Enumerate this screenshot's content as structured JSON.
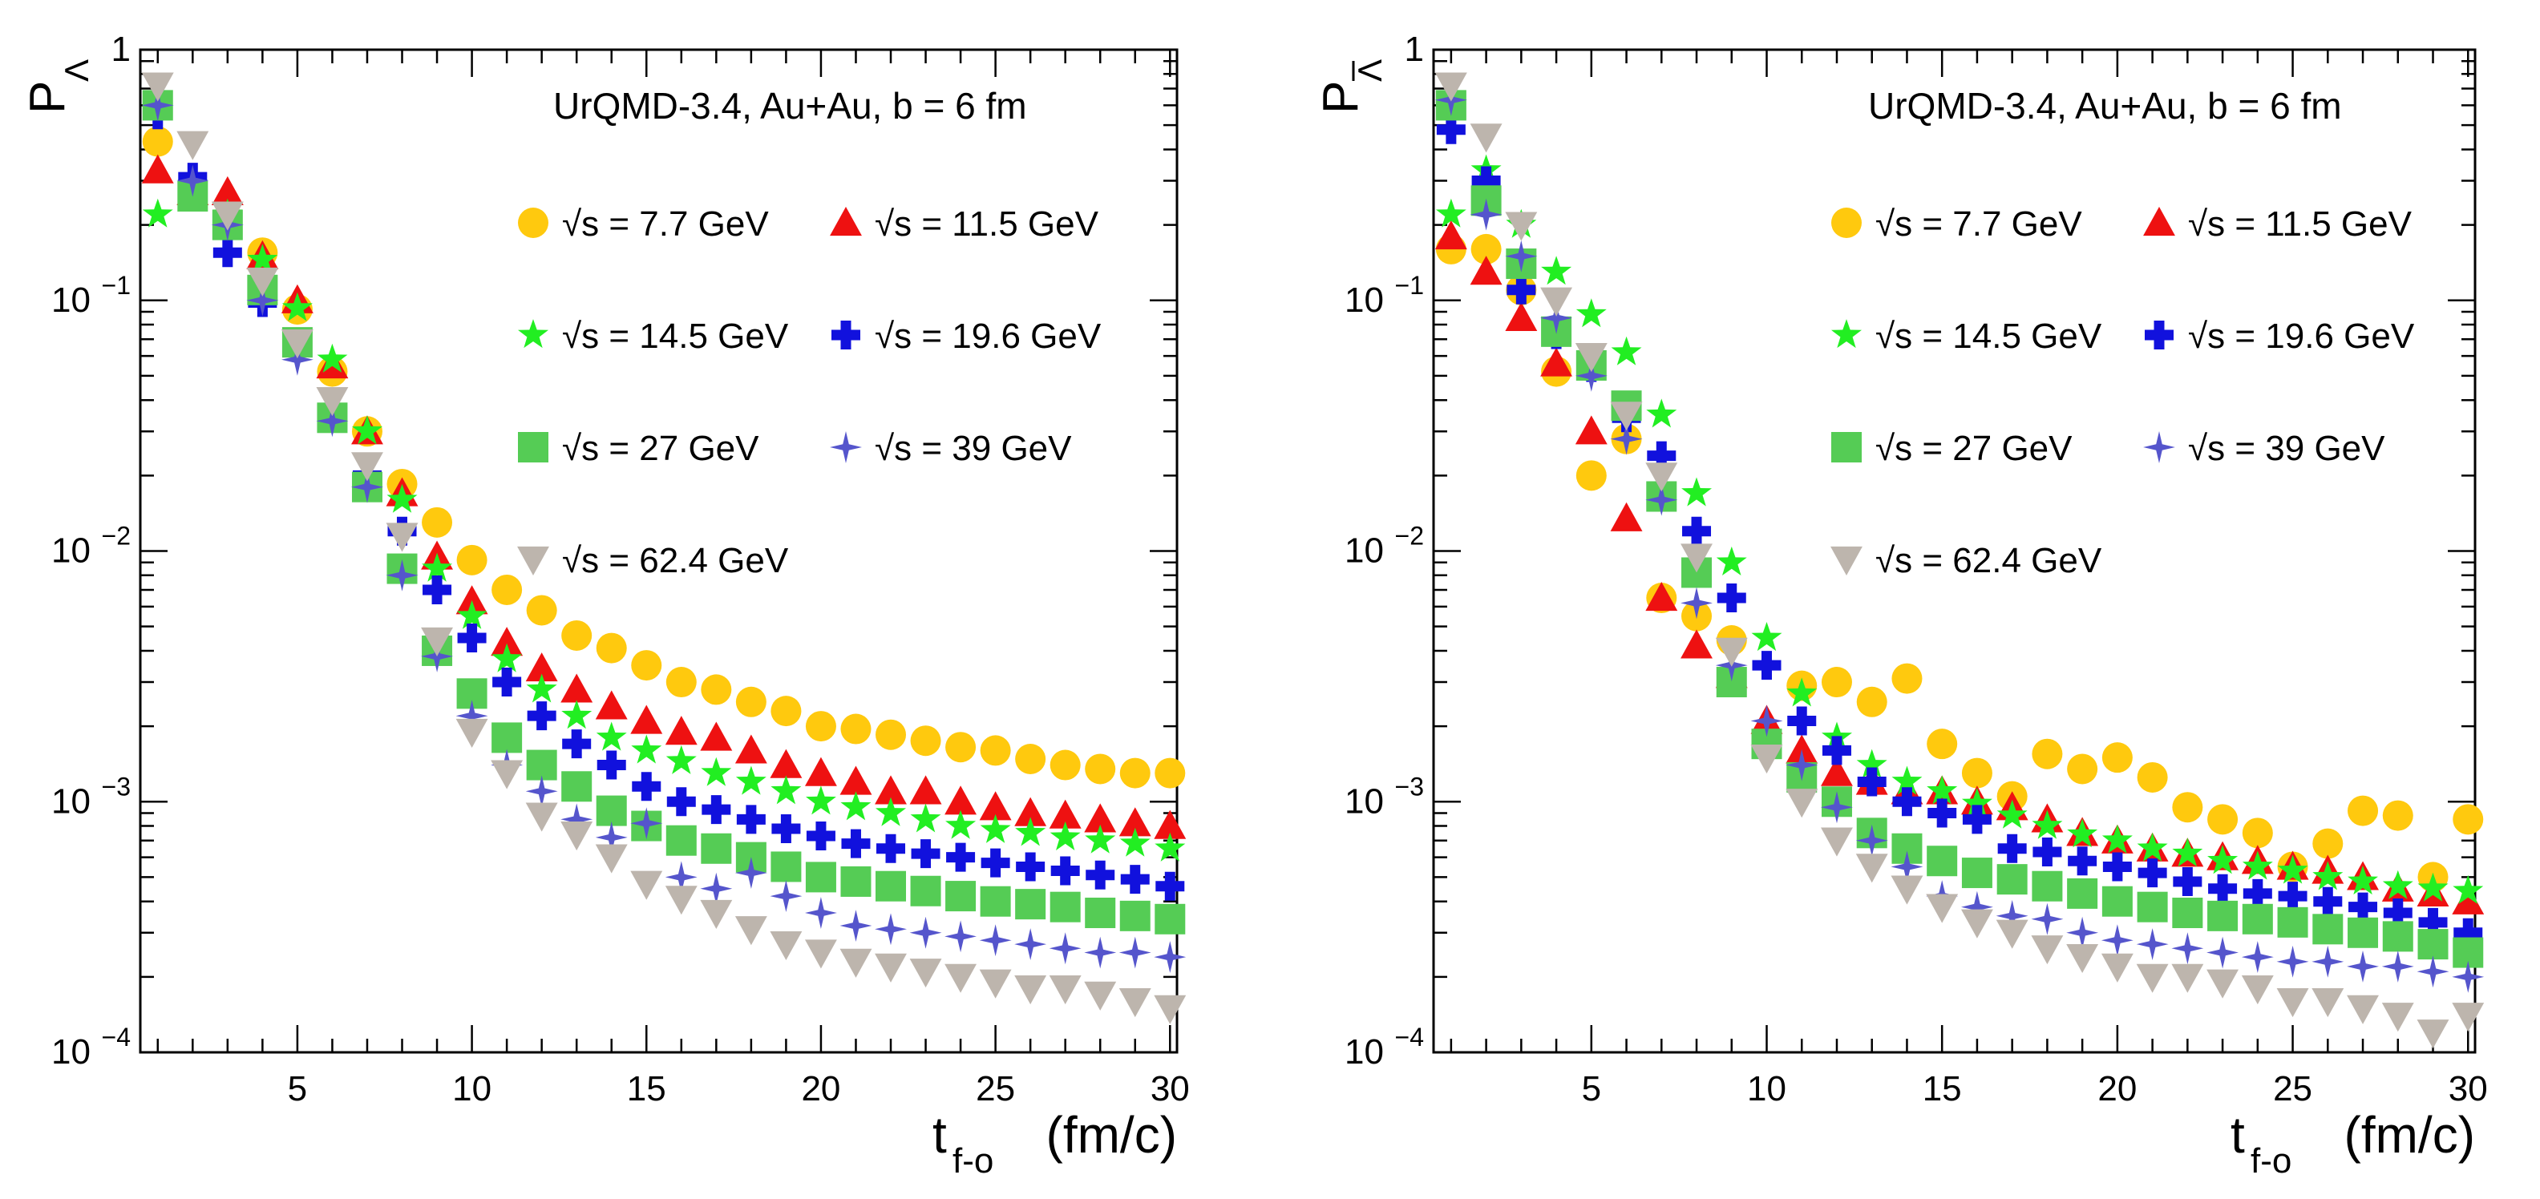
{
  "chart_data": [
    {
      "type": "scatter",
      "panel": "left",
      "yscale": "log",
      "xlim": [
        0.5,
        30.2
      ],
      "ylim": [
        0.0001,
        1
      ],
      "xticks": [
        5,
        10,
        15,
        20,
        25,
        30
      ],
      "ylabel_main": "P",
      "ylabel_sub": "Λ",
      "ylabel_bar": false,
      "xlabel_main": "t",
      "xlabel_sub": "f-o",
      "xlabel_unit": "(fm/c)",
      "annotation": "UrQMD-3.4, Au+Au, b = 6 fm",
      "ytick_labels": [
        {
          "value": 1,
          "base": "1",
          "exp": ""
        },
        {
          "value": 0.1,
          "base": "10",
          "exp": "−1"
        },
        {
          "value": 0.01,
          "base": "10",
          "exp": "−2"
        },
        {
          "value": 0.001,
          "base": "10",
          "exp": "−3"
        },
        {
          "value": 0.0001,
          "base": "10",
          "exp": "−4"
        }
      ],
      "series": [
        {
          "name": "√s = 7.7 GeV",
          "color": "#FFC90E",
          "marker": "circle",
          "x": [
            1,
            4,
            5,
            6,
            7,
            8,
            9,
            10,
            11,
            12,
            13,
            14,
            15,
            16,
            17,
            18,
            19,
            20,
            21,
            22,
            23,
            24,
            25,
            26,
            27,
            28,
            29,
            30
          ],
          "y": [
            0.43,
            0.155,
            0.092,
            0.052,
            0.03,
            0.0185,
            0.013,
            0.0092,
            0.007,
            0.0058,
            0.0046,
            0.0041,
            0.0035,
            0.003,
            0.0028,
            0.0025,
            0.0023,
            0.002,
            0.00195,
            0.00185,
            0.00175,
            0.00165,
            0.0016,
            0.00148,
            0.0014,
            0.00135,
            0.0013,
            0.0013
          ]
        },
        {
          "name": "√s = 11.5 GeV",
          "color": "#EE1111",
          "marker": "triangle-up",
          "x": [
            1,
            2,
            3,
            4,
            5,
            6,
            7,
            8,
            9,
            10,
            11,
            12,
            13,
            14,
            15,
            16,
            17,
            18,
            19,
            20,
            21,
            22,
            23,
            24,
            25,
            26,
            27,
            28,
            29,
            30
          ],
          "y": [
            0.33,
            0.27,
            0.27,
            0.15,
            0.1,
            0.055,
            0.03,
            0.017,
            0.0095,
            0.0063,
            0.0043,
            0.0034,
            0.0028,
            0.0024,
            0.0021,
            0.0019,
            0.0018,
            0.0016,
            0.0014,
            0.0013,
            0.0012,
            0.0011,
            0.0011,
            0.001,
            0.00095,
            0.0009,
            0.00088,
            0.00085,
            0.00082,
            0.0008
          ]
        },
        {
          "name": "√s = 14.5 GeV",
          "color": "#22EE22",
          "marker": "star5",
          "x": [
            1,
            2,
            3,
            4,
            5,
            6,
            7,
            8,
            9,
            10,
            11,
            12,
            13,
            14,
            15,
            16,
            17,
            18,
            19,
            20,
            21,
            22,
            23,
            24,
            25,
            26,
            27,
            28,
            29,
            30
          ],
          "y": [
            0.22,
            0.29,
            0.22,
            0.145,
            0.093,
            0.058,
            0.03,
            0.016,
            0.0085,
            0.0055,
            0.0037,
            0.0028,
            0.0022,
            0.0018,
            0.0016,
            0.00145,
            0.0013,
            0.0012,
            0.0011,
            0.001,
            0.00095,
            0.0009,
            0.00085,
            0.0008,
            0.00077,
            0.00075,
            0.00072,
            0.0007,
            0.00068,
            0.00065
          ]
        },
        {
          "name": "√s = 19.6 GeV",
          "color": "#1111DD",
          "marker": "cross",
          "x": [
            1,
            2,
            3,
            4,
            5,
            6,
            7,
            8,
            9,
            10,
            11,
            12,
            13,
            14,
            15,
            16,
            17,
            18,
            19,
            20,
            21,
            22,
            23,
            24,
            25,
            26,
            27,
            28,
            29,
            30
          ],
          "y": [
            0.55,
            0.31,
            0.155,
            0.098,
            0.065,
            0.035,
            0.02,
            0.012,
            0.007,
            0.0045,
            0.003,
            0.0022,
            0.0017,
            0.0014,
            0.00115,
            0.001,
            0.00093,
            0.00085,
            0.00078,
            0.00073,
            0.00068,
            0.00065,
            0.00062,
            0.0006,
            0.00057,
            0.00055,
            0.00053,
            0.00051,
            0.00049,
            0.00046
          ]
        },
        {
          "name": "√s = 27 GeV",
          "color": "#55CC55",
          "marker": "square",
          "x": [
            1,
            2,
            3,
            4,
            5,
            6,
            7,
            8,
            9,
            10,
            11,
            12,
            13,
            14,
            15,
            16,
            17,
            18,
            19,
            20,
            21,
            22,
            23,
            24,
            25,
            26,
            27,
            28,
            29,
            30
          ],
          "y": [
            0.6,
            0.26,
            0.2,
            0.11,
            0.068,
            0.034,
            0.018,
            0.0085,
            0.004,
            0.0027,
            0.0018,
            0.0014,
            0.00115,
            0.00092,
            0.0008,
            0.0007,
            0.00065,
            0.0006,
            0.00055,
            0.0005,
            0.00048,
            0.00046,
            0.00044,
            0.00042,
            0.0004,
            0.00039,
            0.00038,
            0.00036,
            0.00035,
            0.00034
          ]
        },
        {
          "name": "√s = 39 GeV",
          "color": "#5555CC",
          "marker": "star4",
          "x": [
            1,
            2,
            3,
            4,
            5,
            6,
            7,
            8,
            9,
            10,
            11,
            12,
            13,
            14,
            15,
            16,
            17,
            18,
            19,
            20,
            21,
            22,
            23,
            24,
            25,
            26,
            27,
            28,
            29,
            30
          ],
          "y": [
            0.6,
            0.3,
            0.2,
            0.1,
            0.058,
            0.033,
            0.018,
            0.008,
            0.0038,
            0.0022,
            0.0014,
            0.0011,
            0.00085,
            0.00072,
            0.00082,
            0.0005,
            0.00045,
            0.00052,
            0.00042,
            0.00036,
            0.00032,
            0.00031,
            0.0003,
            0.00029,
            0.00028,
            0.00027,
            0.00026,
            0.00025,
            0.00025,
            0.00024
          ]
        },
        {
          "name": "√s = 62.4 GeV",
          "color": "#BDB5AD",
          "marker": "triangle-down",
          "x": [
            1,
            2,
            3,
            4,
            5,
            6,
            7,
            8,
            9,
            10,
            11,
            12,
            13,
            14,
            15,
            16,
            17,
            18,
            19,
            20,
            21,
            22,
            23,
            24,
            25,
            26,
            27,
            28,
            29,
            30
          ],
          "y": [
            0.72,
            0.42,
            0.22,
            0.12,
            0.068,
            0.04,
            0.022,
            0.0115,
            0.0044,
            0.0019,
            0.0013,
            0.00088,
            0.00074,
            0.0006,
            0.00047,
            0.00041,
            0.00036,
            0.00031,
            0.00027,
            0.00025,
            0.00023,
            0.00022,
            0.00021,
            0.0002,
            0.00019,
            0.00018,
            0.00018,
            0.00017,
            0.00016,
            0.00015
          ]
        }
      ]
    },
    {
      "type": "scatter",
      "panel": "right",
      "yscale": "log",
      "xlim": [
        0.5,
        30.2
      ],
      "ylim": [
        0.0001,
        1
      ],
      "xticks": [
        5,
        10,
        15,
        20,
        25,
        30
      ],
      "ylabel_main": "P",
      "ylabel_sub": "Λ",
      "ylabel_bar": true,
      "xlabel_main": "t",
      "xlabel_sub": "f-o",
      "xlabel_unit": "(fm/c)",
      "annotation": "UrQMD-3.4, Au+Au, b = 6 fm",
      "ytick_labels": [
        {
          "value": 1,
          "base": "1",
          "exp": ""
        },
        {
          "value": 0.1,
          "base": "10",
          "exp": "−1"
        },
        {
          "value": 0.01,
          "base": "10",
          "exp": "−2"
        },
        {
          "value": 0.001,
          "base": "10",
          "exp": "−3"
        },
        {
          "value": 0.0001,
          "base": "10",
          "exp": "−4"
        }
      ],
      "series": [
        {
          "name": "√s = 7.7 GeV",
          "color": "#FFC90E",
          "marker": "circle",
          "x": [
            1,
            2,
            3,
            4,
            5,
            6,
            7,
            8,
            9,
            10,
            11,
            12,
            13,
            14,
            15,
            16,
            17,
            18,
            19,
            20,
            21,
            22,
            23,
            24,
            25,
            26,
            27,
            28,
            29,
            30
          ],
          "y": [
            0.16,
            0.16,
            0.11,
            0.052,
            0.02,
            0.028,
            0.0065,
            0.0055,
            0.0044,
            0.0017,
            0.0029,
            0.003,
            0.0025,
            0.0031,
            0.0017,
            0.0013,
            0.00105,
            0.00155,
            0.00135,
            0.0015,
            0.00125,
            0.00095,
            0.00085,
            0.00075,
            0.00055,
            0.00068,
            0.00092,
            0.00088,
            0.0005,
            0.00085
          ]
        },
        {
          "name": "√s = 11.5 GeV",
          "color": "#EE1111",
          "marker": "triangle-up",
          "x": [
            1,
            2,
            3,
            4,
            5,
            6,
            7,
            8,
            9,
            10,
            11,
            12,
            13,
            14,
            15,
            16,
            17,
            18,
            19,
            20,
            21,
            22,
            23,
            24,
            25,
            26,
            27,
            28,
            29,
            30
          ],
          "y": [
            0.18,
            0.13,
            0.085,
            0.056,
            0.03,
            0.0135,
            0.0065,
            0.0042,
            0.0032,
            0.0021,
            0.0016,
            0.0013,
            0.0012,
            0.0011,
            0.0011,
            0.001,
            0.00095,
            0.00085,
            0.00075,
            0.0007,
            0.00065,
            0.00062,
            0.0006,
            0.00058,
            0.00055,
            0.00053,
            0.0005,
            0.00045,
            0.00043,
            0.0004
          ]
        },
        {
          "name": "√s = 14.5 GeV",
          "color": "#22EE22",
          "marker": "star5",
          "x": [
            1,
            2,
            3,
            4,
            5,
            6,
            7,
            8,
            9,
            10,
            11,
            12,
            13,
            14,
            15,
            16,
            17,
            18,
            19,
            20,
            21,
            22,
            23,
            24,
            25,
            26,
            27,
            28,
            29,
            30
          ],
          "y": [
            0.22,
            0.33,
            0.2,
            0.13,
            0.088,
            0.062,
            0.035,
            0.017,
            0.009,
            0.0045,
            0.0027,
            0.0018,
            0.0014,
            0.0012,
            0.0011,
            0.00098,
            0.00088,
            0.0008,
            0.00074,
            0.0007,
            0.00065,
            0.00062,
            0.00058,
            0.00055,
            0.00053,
            0.0005,
            0.00048,
            0.00046,
            0.00045,
            0.00044
          ]
        },
        {
          "name": "√s = 19.6 GeV",
          "color": "#1111DD",
          "marker": "cross",
          "x": [
            1,
            2,
            3,
            4,
            5,
            6,
            7,
            8,
            9,
            10,
            11,
            12,
            13,
            14,
            15,
            16,
            17,
            18,
            19,
            20,
            21,
            22,
            23,
            24,
            25,
            26,
            27,
            28,
            29,
            30
          ],
          "y": [
            0.48,
            0.3,
            0.11,
            0.073,
            0.054,
            0.034,
            0.024,
            0.012,
            0.0065,
            0.0035,
            0.0021,
            0.0016,
            0.0012,
            0.001,
            0.0009,
            0.00085,
            0.00065,
            0.00063,
            0.00058,
            0.00055,
            0.00052,
            0.00048,
            0.00045,
            0.00043,
            0.00042,
            0.0004,
            0.00038,
            0.00036,
            0.00033,
            0.0003
          ]
        },
        {
          "name": "√s = 27 GeV",
          "color": "#55CC55",
          "marker": "square",
          "x": [
            1,
            2,
            3,
            4,
            5,
            6,
            7,
            8,
            9,
            10,
            11,
            12,
            13,
            14,
            15,
            16,
            17,
            18,
            19,
            20,
            21,
            22,
            23,
            24,
            25,
            26,
            27,
            28,
            29,
            30
          ],
          "y": [
            0.6,
            0.25,
            0.14,
            0.075,
            0.055,
            0.038,
            0.0165,
            0.0082,
            0.003,
            0.0017,
            0.00125,
            0.001,
            0.00075,
            0.00065,
            0.00058,
            0.00052,
            0.00049,
            0.00046,
            0.00043,
            0.0004,
            0.00038,
            0.00036,
            0.00035,
            0.00034,
            0.00033,
            0.00031,
            0.0003,
            0.00029,
            0.00027,
            0.00025
          ]
        },
        {
          "name": "√s = 39 GeV",
          "color": "#5555CC",
          "marker": "star4",
          "x": [
            1,
            2,
            3,
            4,
            5,
            6,
            7,
            8,
            9,
            10,
            11,
            12,
            13,
            14,
            15,
            16,
            17,
            18,
            19,
            20,
            21,
            22,
            23,
            24,
            25,
            26,
            27,
            28,
            29,
            30
          ],
          "y": [
            0.63,
            0.22,
            0.15,
            0.085,
            0.05,
            0.028,
            0.016,
            0.0062,
            0.0035,
            0.0021,
            0.0014,
            0.00095,
            0.0007,
            0.00055,
            0.00042,
            0.00038,
            0.00035,
            0.00034,
            0.0003,
            0.00028,
            0.00027,
            0.00026,
            0.00025,
            0.00024,
            0.00023,
            0.00023,
            0.00022,
            0.00022,
            0.00021,
            0.0002
          ]
        },
        {
          "name": "√s = 62.4 GeV",
          "color": "#BDB5AD",
          "marker": "triangle-down",
          "x": [
            1,
            2,
            3,
            4,
            5,
            6,
            7,
            8,
            9,
            10,
            11,
            12,
            13,
            14,
            15,
            16,
            17,
            18,
            19,
            20,
            21,
            22,
            23,
            24,
            25,
            26,
            27,
            28,
            29,
            30
          ],
          "y": [
            0.72,
            0.45,
            0.2,
            0.1,
            0.06,
            0.035,
            0.02,
            0.0095,
            0.004,
            0.0015,
            0.001,
            0.0007,
            0.00055,
            0.00045,
            0.00038,
            0.00033,
            0.0003,
            0.00026,
            0.00024,
            0.00022,
            0.0002,
            0.0002,
            0.00019,
            0.00018,
            0.00016,
            0.00016,
            0.00015,
            0.00014,
            0.00012,
            0.00014
          ]
        }
      ]
    }
  ]
}
